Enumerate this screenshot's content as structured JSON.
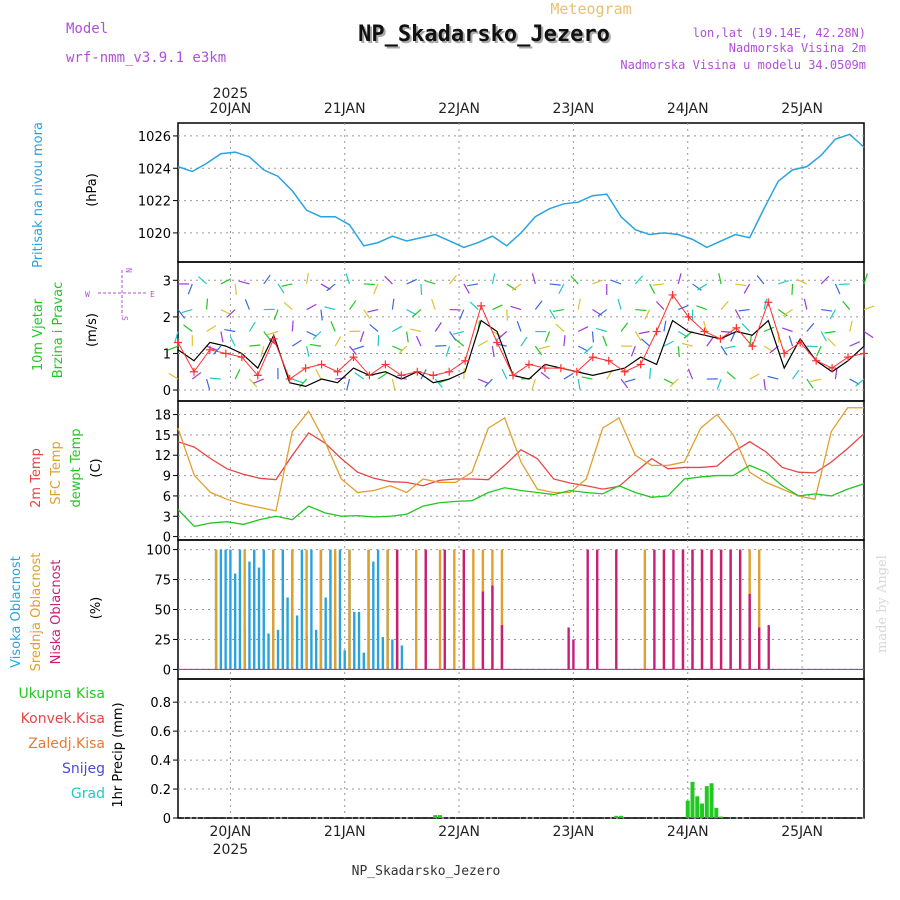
{
  "header": {
    "meteogram_label": "Meteogram",
    "title": "NP_Skadarsko_Jezero",
    "model_label": "Model",
    "model_name": "wrf-nmm_v3.9.1 e3km",
    "lonlat": "lon,lat (19.14E, 42.28N)",
    "altitude": "Nadmorska Visina 2m",
    "model_altitude": "Nadmorska Visina u modelu 34.0509m",
    "footer_station": "NP_Skadarsko_Jezero",
    "watermark": "made by Angel"
  },
  "colors": {
    "pressure": "#29a3e0",
    "temp2m": "#e84545",
    "sfc": "#e0a030",
    "dewpt": "#22c822",
    "high_cloud": "#29a3e0",
    "mid_cloud": "#e0a030",
    "low_cloud": "#c81e78",
    "precip_total": "#22c822",
    "wind_label": "#9a3ad8",
    "speed_line": "#000000",
    "speed_obs": "#ff3030"
  },
  "chart_data": [
    {
      "type": "line",
      "id": "pressure",
      "ylabel": "Pritisak na nivou mora",
      "unit": "(hPa)",
      "ylim": [
        1018.2,
        1026.8
      ],
      "yticks": [
        1020,
        1022,
        1024,
        1026
      ],
      "series": [
        {
          "name": "Pritisak na nivou mora",
          "color": "#29a3e0",
          "x_hours": [
            0,
            3,
            6,
            9,
            12,
            15,
            18,
            21,
            24,
            27,
            30,
            33,
            36,
            39,
            42,
            45,
            48,
            51,
            54,
            57,
            60,
            63,
            66,
            69,
            72,
            75,
            78,
            81,
            84,
            87,
            90,
            93,
            96,
            99,
            102,
            105,
            108,
            111,
            114,
            117,
            120,
            123,
            126,
            129,
            132,
            135,
            138,
            141,
            144
          ],
          "values": [
            1024.1,
            1023.8,
            1024.3,
            1024.9,
            1025.0,
            1024.7,
            1023.9,
            1023.5,
            1022.6,
            1021.4,
            1021.0,
            1021.0,
            1020.5,
            1019.2,
            1019.4,
            1019.8,
            1019.5,
            1019.7,
            1019.9,
            1019.5,
            1019.1,
            1019.4,
            1019.8,
            1019.2,
            1020.0,
            1021.0,
            1021.5,
            1021.8,
            1021.9,
            1022.3,
            1022.4,
            1021.0,
            1020.2,
            1019.9,
            1020.0,
            1019.9,
            1019.6,
            1019.1,
            1019.5,
            1019.9,
            1019.7,
            1021.5,
            1023.2,
            1023.9,
            1024.1,
            1024.8,
            1025.8,
            1026.1,
            1025.3
          ]
        }
      ],
      "grid": true
    },
    {
      "type": "scatter",
      "id": "wind",
      "ylabel": "10m Vjetar",
      "ylabel2": "Brzina i Pravac",
      "unit": "(m/s)",
      "ylim": [
        -0.3,
        3.5
      ],
      "yticks": [
        0,
        1,
        2,
        3
      ],
      "series": [
        {
          "name": "speed",
          "color": "#000000",
          "values": [
            1.1,
            0.8,
            1.3,
            1.2,
            1.0,
            0.6,
            1.5,
            0.2,
            0.1,
            0.3,
            0.2,
            0.6,
            0.4,
            0.5,
            0.3,
            0.5,
            0.2,
            0.3,
            0.5,
            1.9,
            1.6,
            0.4,
            0.3,
            0.7,
            0.6,
            0.5,
            0.4,
            0.5,
            0.6,
            0.9,
            0.7,
            1.9,
            1.6,
            1.5,
            1.4,
            1.6,
            1.5,
            1.9,
            0.6,
            1.4,
            0.8,
            0.5,
            0.8,
            1.2
          ]
        },
        {
          "name": "gust",
          "color": "#ff3030",
          "values": [
            1.3,
            0.5,
            1.1,
            1.0,
            0.9,
            0.4,
            1.4,
            0.3,
            0.6,
            0.7,
            0.5,
            0.9,
            0.4,
            0.7,
            0.4,
            0.5,
            0.4,
            0.5,
            0.8,
            2.3,
            1.3,
            0.4,
            0.7,
            0.6,
            0.6,
            0.5,
            0.9,
            0.8,
            0.5,
            0.7,
            1.6,
            2.6,
            2.0,
            1.6,
            1.4,
            1.7,
            1.2,
            2.4,
            1.0,
            1.3,
            0.8,
            0.6,
            0.9,
            1.0
          ]
        }
      ],
      "arrow_rows": [
        2.9,
        2.2,
        1.6,
        1.2,
        0.3
      ],
      "compass_labels": {
        "north": "N",
        "south": "S",
        "east": "E",
        "west": "W"
      }
    },
    {
      "type": "line",
      "id": "temperature",
      "unit": "(C)",
      "ylim": [
        -0.5,
        20
      ],
      "yticks": [
        0,
        3,
        6,
        9,
        12,
        15,
        18
      ],
      "series": [
        {
          "name": "2m Temp",
          "color": "#e84545",
          "values": [
            14.0,
            13.2,
            11.5,
            10.0,
            9.2,
            8.6,
            8.4,
            12.0,
            15.3,
            13.8,
            11.5,
            9.5,
            8.6,
            8.1,
            8.0,
            7.5,
            8.3,
            8.5,
            8.5,
            8.4,
            10.5,
            12.8,
            11.5,
            8.5,
            7.9,
            7.5,
            7.0,
            7.4,
            9.5,
            11.5,
            10.0,
            10.2,
            10.2,
            10.4,
            12.5,
            14.0,
            12.5,
            10.2,
            9.5,
            9.4,
            11.0,
            13.0,
            15.2
          ]
        },
        {
          "name": "SFC Temp",
          "color": "#e0a030",
          "values": [
            16.0,
            9.0,
            6.5,
            5.5,
            4.8,
            4.3,
            3.8,
            15.5,
            18.5,
            14.0,
            8.5,
            6.5,
            6.8,
            7.5,
            6.5,
            8.5,
            8.0,
            8.0,
            9.5,
            16.0,
            17.5,
            11.0,
            7.0,
            6.5,
            6.5,
            8.5,
            16.0,
            17.5,
            12.0,
            10.5,
            10.5,
            11.0,
            16.0,
            18.0,
            15.0,
            9.5,
            8.0,
            7.0,
            6.0,
            5.5,
            15.5,
            19.0,
            19.0
          ]
        },
        {
          "name": "dewpt Temp",
          "color": "#22c822",
          "values": [
            4.0,
            1.5,
            2.0,
            2.2,
            1.8,
            2.5,
            3.0,
            2.5,
            4.5,
            3.5,
            3.0,
            3.1,
            2.9,
            3.0,
            3.3,
            4.5,
            5.0,
            5.2,
            5.3,
            6.5,
            7.2,
            6.8,
            6.5,
            6.2,
            6.8,
            6.5,
            6.3,
            7.5,
            6.5,
            5.8,
            6.0,
            8.5,
            8.8,
            9.0,
            9.0,
            10.5,
            9.5,
            7.5,
            6.0,
            6.3,
            6.0,
            7.0,
            7.8
          ]
        }
      ],
      "legend": [
        "2m Temp",
        "SFC Temp",
        "dewpt Temp"
      ]
    },
    {
      "type": "bar",
      "id": "cloud",
      "unit": "(%)",
      "ylim": [
        -8,
        108
      ],
      "yticks": [
        0,
        25,
        50,
        75,
        100
      ],
      "legend": [
        "Visoka Oblacnost",
        "Srednja Oblacnost",
        "Niska Oblacnost"
      ],
      "series": [
        {
          "name": "Visoka Oblacnost",
          "color": "#29a3e0",
          "x_hours": [
            8,
            9,
            10,
            11,
            12,
            13,
            14,
            15,
            16,
            17,
            18,
            19,
            20,
            21,
            22,
            23,
            24,
            25,
            26,
            27,
            28,
            29,
            30,
            31,
            32,
            33,
            34,
            35,
            36,
            37,
            38,
            39,
            40,
            41,
            42,
            43,
            44,
            45,
            46,
            47,
            48
          ],
          "values": [
            100,
            100,
            100,
            100,
            80,
            100,
            33,
            90,
            100,
            85,
            100,
            30,
            100,
            33,
            100,
            60,
            100,
            45,
            100,
            28,
            100,
            33,
            100,
            60,
            100,
            28,
            100,
            16,
            100,
            48,
            48,
            14,
            100,
            90,
            100,
            27,
            100,
            25,
            90,
            20,
            0
          ]
        },
        {
          "name": "Srednja Oblacnost",
          "color": "#e0a030",
          "x_hours": [
            8,
            14,
            20,
            24,
            27,
            30,
            33,
            36,
            40,
            44,
            46,
            50,
            52,
            55,
            58,
            60,
            62,
            64,
            66,
            68,
            70,
            72,
            74,
            98,
            102,
            106,
            108,
            110,
            112,
            114,
            116,
            118,
            120,
            122
          ],
          "values": [
            100,
            100,
            100,
            100,
            100,
            100,
            100,
            100,
            100,
            100,
            100,
            100,
            100,
            100,
            100,
            100,
            100,
            100,
            100,
            100,
            0,
            0,
            0,
            100,
            100,
            100,
            100,
            100,
            100,
            100,
            100,
            100,
            100,
            100
          ]
        },
        {
          "name": "Niska Oblacnost",
          "color": "#c81e78",
          "x_hours": [
            46,
            52,
            56,
            60,
            64,
            66,
            68,
            72,
            82,
            83,
            86,
            88,
            92,
            100,
            102,
            104,
            106,
            108,
            110,
            112,
            114,
            116,
            118,
            120,
            122,
            124,
            125
          ],
          "values": [
            100,
            100,
            100,
            100,
            65,
            70,
            37,
            0,
            35,
            25,
            100,
            100,
            100,
            100,
            100,
            100,
            100,
            100,
            100,
            100,
            100,
            100,
            100,
            63,
            35,
            37,
            0
          ]
        }
      ]
    },
    {
      "type": "bar",
      "id": "precip",
      "unit": "(mm)",
      "ylabel": "1hr Precip",
      "ylim": [
        0,
        0.96
      ],
      "yticks": [
        0,
        0.2,
        0.4,
        0.6,
        0.8
      ],
      "legend": [
        "Ukupna Kisa",
        "Konvek.Kisa",
        "Zaledj.Kisa",
        "Snijeg",
        "Grad"
      ],
      "series": [
        {
          "name": "Ukupna Kisa",
          "color": "#22c822",
          "x_hours": [
            54,
            55,
            92,
            93,
            107,
            108,
            109,
            110,
            111,
            112,
            113,
            114
          ],
          "values": [
            0.02,
            0.02,
            0.015,
            0.015,
            0.12,
            0.25,
            0.15,
            0.1,
            0.22,
            0.24,
            0.07,
            0.01
          ]
        }
      ]
    }
  ],
  "xaxis": {
    "top_labels": [
      "20JAN",
      "21JAN",
      "22JAN",
      "23JAN",
      "24JAN",
      "25JAN"
    ],
    "top_year": "2025",
    "bottom_labels": [
      "20JAN",
      "21JAN",
      "22JAN",
      "23JAN",
      "24JAN",
      "25JAN"
    ],
    "bottom_year": "2025",
    "hours_start": 0,
    "hours_end": 144
  },
  "side_labels": {
    "pressure": "Pritisak na nivou mora",
    "wind1": "10m Vjetar",
    "wind2": "Brzina i Pravac",
    "temp1": "2m Temp",
    "temp2": "SFC Temp",
    "temp3": "dewpt Temp",
    "cloud1": "Visoka Oblacnost",
    "cloud2": "Srednja Oblacnost",
    "cloud3": "Niska Oblacnost",
    "precip_ylabel": "1hr Precip",
    "pressure_unit": "(hPa)",
    "wind_unit": "(m/s)",
    "temp_unit": "(C)",
    "cloud_unit": "(%)",
    "precip_unit": "(mm)"
  },
  "precip_legend": [
    {
      "label": "Ukupna Kisa",
      "color": "#22c822"
    },
    {
      "label": "Konvek.Kisa",
      "color": "#e84545"
    },
    {
      "label": "Zaledj.Kisa",
      "color": "#e87a30"
    },
    {
      "label": "Snijeg",
      "color": "#4a4ad8"
    },
    {
      "label": "Grad",
      "color": "#22c8c8"
    }
  ]
}
